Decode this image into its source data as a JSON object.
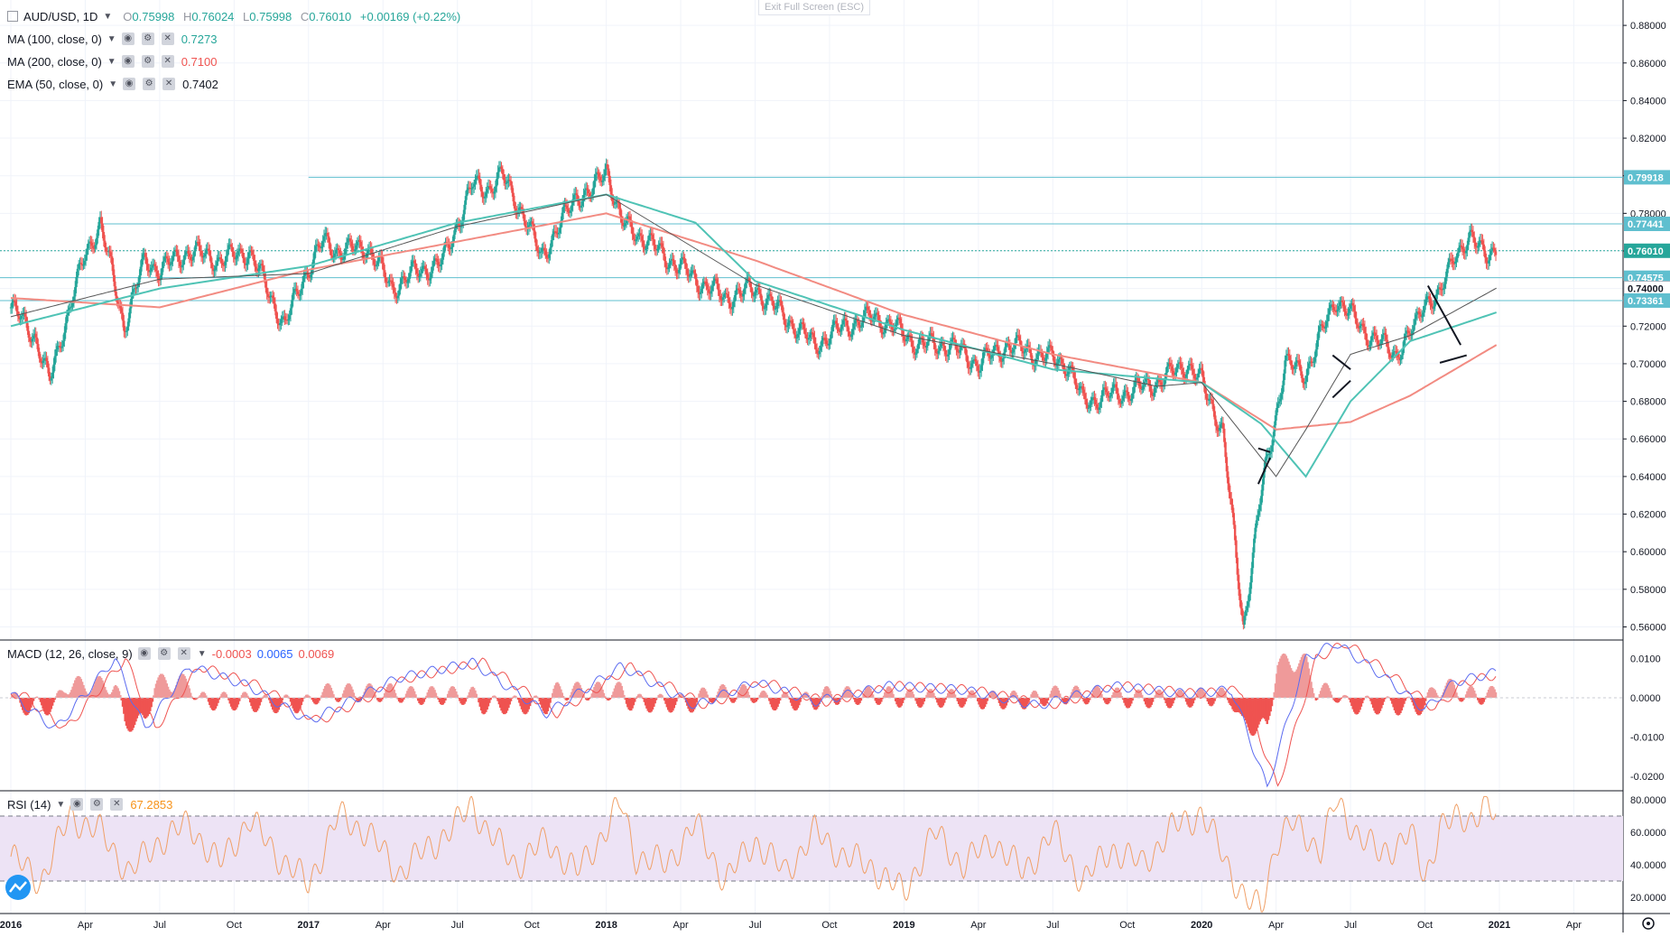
{
  "header": {
    "symbol": "AUD/USD, 1D",
    "o_label": "O",
    "o": "0.75998",
    "h_label": "H",
    "h": "0.76024",
    "l_label": "L",
    "l": "0.75998",
    "c_label": "C",
    "c": "0.76010",
    "change": "+0.00169 (+0.22%)"
  },
  "exit_fullscreen": "Exit Full Screen (ESC)",
  "indicators": [
    {
      "label": "MA (100, close, 0)",
      "value": "0.7273",
      "color": "#26a69a"
    },
    {
      "label": "MA (200, close, 0)",
      "value": "0.7100",
      "color": "#ef5350"
    },
    {
      "label": "EMA (50, close, 0)",
      "value": "0.7402",
      "color": "#131722"
    }
  ],
  "macd": {
    "label": "MACD (12, 26, close, 9)",
    "hist": "-0.0003",
    "macd": "0.0065",
    "signal": "0.0069"
  },
  "rsi": {
    "label": "RSI (14)",
    "value": "67.2853"
  },
  "chart_data": {
    "type": "line",
    "title": "AUD/USD, 1D",
    "x_ticks": [
      "2016",
      "Apr",
      "Jul",
      "Oct",
      "2017",
      "Apr",
      "Jul",
      "Oct",
      "2018",
      "Apr",
      "Jul",
      "Oct",
      "2019",
      "Apr",
      "Jul",
      "Oct",
      "2020",
      "Apr",
      "Jul",
      "Oct",
      "2021",
      "Apr"
    ],
    "x_tick_t": [
      0,
      0.25,
      0.5,
      0.75,
      1,
      1.25,
      1.5,
      1.75,
      2,
      2.25,
      2.5,
      2.75,
      3,
      3.25,
      3.5,
      3.75,
      4,
      4.25,
      4.5,
      4.75,
      5,
      5.25
    ],
    "price_ticks": [
      "0.88000",
      "0.86000",
      "0.84000",
      "0.82000",
      "0.80000",
      "0.78000",
      "0.76000",
      "0.74000",
      "0.72000",
      "0.70000",
      "0.68000",
      "0.66000",
      "0.64000",
      "0.62000",
      "0.60000",
      "0.58000",
      "0.56000"
    ],
    "price_tick_values": [
      0.88,
      0.86,
      0.84,
      0.82,
      0.8,
      0.78,
      0.76,
      0.74,
      0.72,
      0.7,
      0.68,
      0.66,
      0.64,
      0.62,
      0.6,
      0.58,
      0.56
    ],
    "price_ylim": [
      0.5535,
      0.8935
    ],
    "horizontal_levels": [
      {
        "value": 0.79918,
        "label": "0.79918",
        "x_start_t": 1.0,
        "color": "#5fbfcf"
      },
      {
        "value": 0.77441,
        "label": "0.77441",
        "x_start_t": 0.31,
        "color": "#5fbfcf"
      },
      {
        "value": 0.7601,
        "label": "0.76010",
        "dotted": true,
        "color": "#26a69a"
      },
      {
        "value": 0.74575,
        "label": "0.74575",
        "color": "#5fbfcf"
      },
      {
        "value": 0.74,
        "label": "0.74000",
        "color": "#ffffff"
      },
      {
        "value": 0.73361,
        "label": "0.73361",
        "color": "#5fbfcf"
      }
    ],
    "price_series": {
      "t": [
        0,
        0.08,
        0.13,
        0.17,
        0.25,
        0.3,
        0.38,
        0.45,
        0.5,
        0.6,
        0.7,
        0.8,
        0.92,
        0.98,
        1.05,
        1.1,
        1.2,
        1.28,
        1.35,
        1.45,
        1.55,
        1.6,
        1.65,
        1.72,
        1.78,
        1.85,
        1.9,
        1.95,
        2.0,
        2.05,
        2.1,
        2.2,
        2.3,
        2.4,
        2.5,
        2.6,
        2.7,
        2.8,
        2.9,
        2.96,
        3.05,
        3.15,
        3.25,
        3.35,
        3.45,
        3.55,
        3.6,
        3.75,
        3.85,
        3.95,
        4.0,
        4.07,
        4.14,
        4.19,
        4.21,
        4.24,
        4.28,
        4.35,
        4.4,
        4.45,
        4.55,
        4.65,
        4.72,
        4.75,
        4.8,
        4.85,
        4.9,
        4.96,
        4.99
      ],
      "close": [
        0.73,
        0.715,
        0.69,
        0.715,
        0.758,
        0.775,
        0.72,
        0.755,
        0.75,
        0.76,
        0.755,
        0.76,
        0.72,
        0.745,
        0.765,
        0.76,
        0.762,
        0.74,
        0.748,
        0.754,
        0.795,
        0.793,
        0.8,
        0.78,
        0.757,
        0.775,
        0.79,
        0.79,
        0.805,
        0.775,
        0.77,
        0.757,
        0.745,
        0.735,
        0.74,
        0.725,
        0.71,
        0.72,
        0.725,
        0.72,
        0.71,
        0.71,
        0.7,
        0.71,
        0.705,
        0.7,
        0.68,
        0.685,
        0.69,
        0.7,
        0.69,
        0.665,
        0.56,
        0.62,
        0.64,
        0.665,
        0.7,
        0.695,
        0.715,
        0.735,
        0.717,
        0.705,
        0.72,
        0.735,
        0.735,
        0.76,
        0.765,
        0.76,
        0.76
      ]
    },
    "ema50": {
      "t": [
        0,
        0.5,
        1,
        1.5,
        2,
        2.5,
        3,
        3.5,
        3.85,
        4.0,
        4.15,
        4.25,
        4.35,
        4.5,
        4.7,
        4.99
      ],
      "v": [
        0.725,
        0.745,
        0.748,
        0.773,
        0.79,
        0.742,
        0.715,
        0.7,
        0.688,
        0.69,
        0.66,
        0.64,
        0.665,
        0.705,
        0.715,
        0.7402
      ]
    },
    "ma100": {
      "t": [
        0,
        0.5,
        1,
        1.5,
        2,
        2.3,
        2.5,
        3,
        3.5,
        4,
        4.2,
        4.35,
        4.5,
        4.7,
        4.99
      ],
      "v": [
        0.72,
        0.74,
        0.752,
        0.775,
        0.79,
        0.775,
        0.744,
        0.718,
        0.697,
        0.69,
        0.668,
        0.64,
        0.68,
        0.712,
        0.7273
      ]
    },
    "ma200": {
      "t": [
        0,
        0.5,
        1,
        1.5,
        2,
        2.5,
        3,
        3.5,
        4,
        4.25,
        4.5,
        4.7,
        4.99
      ],
      "v": [
        0.735,
        0.73,
        0.75,
        0.765,
        0.78,
        0.755,
        0.726,
        0.705,
        0.69,
        0.665,
        0.669,
        0.683,
        0.71
      ]
    },
    "macd_ticks": [
      "0.0100",
      "0.0000",
      "-0.0100",
      "-0.0200"
    ],
    "macd_tick_values": [
      0.01,
      0,
      -0.01,
      -0.02
    ],
    "macd_ylim": [
      -0.0235,
      0.0145
    ],
    "macd_series": {
      "t": [
        0,
        0.15,
        0.35,
        0.45,
        0.6,
        0.8,
        1.0,
        1.3,
        1.55,
        1.8,
        2.05,
        2.3,
        2.5,
        2.7,
        2.95,
        3.2,
        3.45,
        3.7,
        3.95,
        4.1,
        4.15,
        4.22,
        4.35,
        4.45,
        4.6,
        4.75,
        4.85,
        4.99
      ],
      "v": [
        0.001,
        -0.008,
        0.01,
        -0.008,
        0.008,
        0.003,
        -0.006,
        0.005,
        0.009,
        -0.004,
        0.008,
        -0.002,
        0.004,
        -0.001,
        0.003,
        0.002,
        -0.002,
        0.003,
        0.001,
        0.002,
        -0.008,
        -0.023,
        0.01,
        0.014,
        0.006,
        -0.003,
        0.004,
        0.0065
      ]
    },
    "rsi_ticks": [
      "80.0000",
      "60.0000",
      "40.0000",
      "20.0000"
    ],
    "rsi_tick_values": [
      80,
      60,
      40,
      20
    ],
    "rsi_ylim": [
      10,
      85
    ],
    "rsi_bands": [
      70,
      30
    ],
    "rsi_series": {
      "t": [
        0,
        0.1,
        0.2,
        0.3,
        0.4,
        0.5,
        0.6,
        0.7,
        0.8,
        0.9,
        1.0,
        1.1,
        1.2,
        1.3,
        1.4,
        1.5,
        1.55,
        1.6,
        1.7,
        1.8,
        1.9,
        2.0,
        2.05,
        2.1,
        2.2,
        2.3,
        2.4,
        2.5,
        2.6,
        2.7,
        2.8,
        2.9,
        3.0,
        3.1,
        3.2,
        3.3,
        3.4,
        3.5,
        3.6,
        3.7,
        3.8,
        3.9,
        4.0,
        4.1,
        4.15,
        4.2,
        4.25,
        4.3,
        4.4,
        4.45,
        4.5,
        4.6,
        4.7,
        4.75,
        4.8,
        4.9,
        4.95,
        4.99
      ],
      "v": [
        45,
        30,
        70,
        60,
        35,
        55,
        65,
        40,
        68,
        45,
        28,
        70,
        60,
        35,
        50,
        65,
        78,
        60,
        40,
        55,
        35,
        62,
        78,
        45,
        40,
        65,
        30,
        55,
        35,
        60,
        45,
        38,
        22,
        60,
        40,
        55,
        35,
        60,
        30,
        50,
        40,
        62,
        72,
        35,
        18,
        12,
        55,
        65,
        50,
        78,
        65,
        45,
        60,
        30,
        65,
        68,
        78,
        67.3
      ]
    }
  }
}
